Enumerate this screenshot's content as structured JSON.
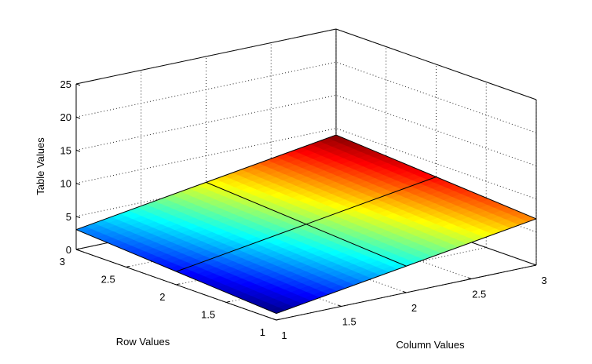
{
  "chart_data": {
    "type": "surface",
    "x": [
      1,
      2,
      3
    ],
    "y": [
      1,
      2,
      3
    ],
    "z": [
      [
        1,
        4,
        7
      ],
      [
        2,
        5,
        8
      ],
      [
        3,
        6,
        9
      ]
    ],
    "xlabel": "Column Values",
    "ylabel": "Row Values",
    "zlabel": "Table Values",
    "xlim": [
      1,
      3
    ],
    "ylim": [
      1,
      3
    ],
    "zlim": [
      0,
      25
    ],
    "x_ticks": [
      "1",
      "1.5",
      "2",
      "2.5",
      "3"
    ],
    "y_ticks": [
      "1",
      "1.5",
      "2",
      "2.5",
      "3"
    ],
    "z_ticks": [
      "0",
      "5",
      "10",
      "15",
      "20",
      "25"
    ],
    "grid": true,
    "colormap": "jet"
  }
}
